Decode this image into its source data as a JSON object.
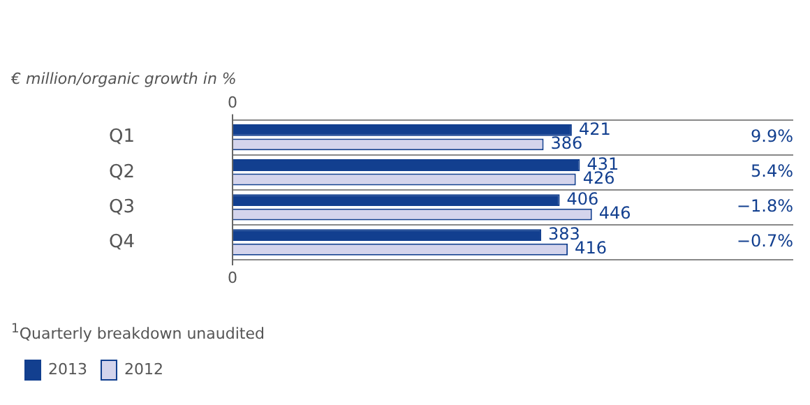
{
  "chart_data": {
    "type": "bar",
    "orientation": "horizontal",
    "title": "€ million/organic growth in %",
    "categories": [
      "Q1",
      "Q2",
      "Q3",
      "Q4"
    ],
    "series": [
      {
        "name": "2013",
        "color": "#123f8f",
        "values": [
          421,
          431,
          406,
          383
        ]
      },
      {
        "name": "2012",
        "color": "#d4d4ec",
        "values": [
          386,
          426,
          446,
          416
        ]
      }
    ],
    "data_labels": true,
    "grid": "y",
    "legend": "bottom left",
    "annotations": [
      "0",
      "0",
      "9.9%",
      "5.4%",
      "−1.8%",
      "−0.7%",
      "$^{1}$Quarterly breakdown unaudited"
    ]
  }
}
